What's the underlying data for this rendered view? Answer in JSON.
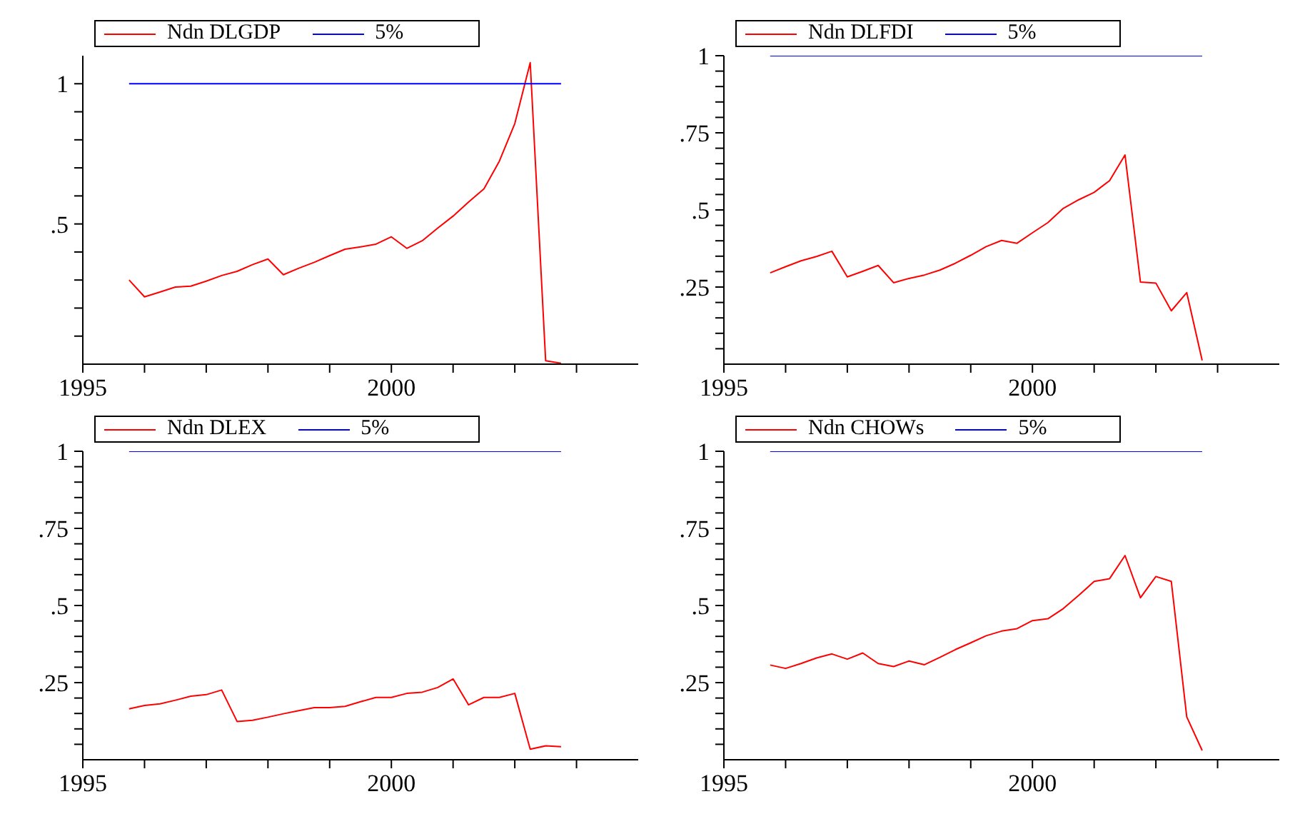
{
  "chart_data": [
    {
      "type": "line",
      "x": [
        1995.75,
        1996,
        1996.25,
        1996.5,
        1996.75,
        1997,
        1997.25,
        1997.5,
        1997.75,
        1998,
        1998.25,
        1998.5,
        1998.75,
        1999,
        1999.25,
        1999.5,
        1999.75,
        2000,
        2000.25,
        2000.5,
        2000.75,
        2001,
        2001.25,
        2001.5,
        2001.75,
        2002,
        2002.25,
        2002.5,
        2002.75
      ],
      "series": [
        {
          "name": "Ndn DLGDP",
          "color": "#ff0000",
          "values": [
            0.3,
            0.24,
            0.257,
            0.275,
            0.278,
            0.296,
            0.316,
            0.331,
            0.355,
            0.375,
            0.319,
            0.342,
            0.363,
            0.387,
            0.41,
            0.418,
            0.428,
            0.454,
            0.413,
            0.44,
            0.485,
            0.528,
            0.578,
            0.625,
            0.724,
            0.858,
            1.075,
            0.012,
            0.003
          ]
        },
        {
          "name": "5%",
          "color": "#0000ff",
          "values": [
            1,
            1,
            1,
            1,
            1,
            1,
            1,
            1,
            1,
            1,
            1,
            1,
            1,
            1,
            1,
            1,
            1,
            1,
            1,
            1,
            1,
            1,
            1,
            1,
            1,
            1,
            1,
            1,
            1
          ]
        }
      ],
      "xlim": [
        1995,
        2004
      ],
      "xticks": [
        {
          "value": 1995,
          "label": "1995"
        },
        {
          "value": 1996,
          "label": null
        },
        {
          "value": 1997,
          "label": null
        },
        {
          "value": 1998,
          "label": null
        },
        {
          "value": 1999,
          "label": null
        },
        {
          "value": 2000,
          "label": "2000"
        },
        {
          "value": 2001,
          "label": null
        },
        {
          "value": 2002,
          "label": null
        },
        {
          "value": 2003,
          "label": null
        }
      ],
      "ylim": [
        0,
        1.1
      ],
      "yticks": [
        {
          "value": 0.1,
          "label": null
        },
        {
          "value": 0.2,
          "label": null
        },
        {
          "value": 0.3,
          "label": null
        },
        {
          "value": 0.4,
          "label": null
        },
        {
          "value": 0.5,
          "label": ".5"
        },
        {
          "value": 0.6,
          "label": null
        },
        {
          "value": 0.7,
          "label": null
        },
        {
          "value": 0.8,
          "label": null
        },
        {
          "value": 0.9,
          "label": null
        },
        {
          "value": 1,
          "label": "1"
        }
      ],
      "legend": "top left",
      "grid": false
    },
    {
      "type": "line",
      "x": [
        1995.75,
        1996,
        1996.25,
        1996.5,
        1996.75,
        1997,
        1997.25,
        1997.5,
        1997.75,
        1998,
        1998.25,
        1998.5,
        1998.75,
        1999,
        1999.25,
        1999.5,
        1999.75,
        2000,
        2000.25,
        2000.5,
        2000.75,
        2001,
        2001.25,
        2001.5,
        2001.75,
        2002,
        2002.25,
        2002.5,
        2002.75
      ],
      "series": [
        {
          "name": "Ndn DLFDI",
          "color": "#ff0000",
          "values": [
            0.296,
            0.316,
            0.335,
            0.349,
            0.366,
            0.283,
            0.301,
            0.32,
            0.264,
            0.278,
            0.289,
            0.305,
            0.327,
            0.353,
            0.381,
            0.401,
            0.392,
            0.426,
            0.459,
            0.505,
            0.533,
            0.557,
            0.595,
            0.678,
            0.266,
            0.263,
            0.173,
            0.232,
            0.012
          ]
        },
        {
          "name": "5%",
          "color": "#0000ff",
          "values": [
            1,
            1,
            1,
            1,
            1,
            1,
            1,
            1,
            1,
            1,
            1,
            1,
            1,
            1,
            1,
            1,
            1,
            1,
            1,
            1,
            1,
            1,
            1,
            1,
            1,
            1,
            1,
            1,
            1
          ]
        }
      ],
      "xlim": [
        1995,
        2004
      ],
      "xticks": [
        {
          "value": 1995,
          "label": "1995"
        },
        {
          "value": 1996,
          "label": null
        },
        {
          "value": 1997,
          "label": null
        },
        {
          "value": 1998,
          "label": null
        },
        {
          "value": 1999,
          "label": null
        },
        {
          "value": 2000,
          "label": "2000"
        },
        {
          "value": 2001,
          "label": null
        },
        {
          "value": 2002,
          "label": null
        },
        {
          "value": 2003,
          "label": null
        }
      ],
      "ylim": [
        0,
        1
      ],
      "yticks": [
        {
          "value": 0.05,
          "label": null
        },
        {
          "value": 0.1,
          "label": null
        },
        {
          "value": 0.15,
          "label": null
        },
        {
          "value": 0.2,
          "label": null
        },
        {
          "value": 0.25,
          "label": ".25"
        },
        {
          "value": 0.3,
          "label": null
        },
        {
          "value": 0.35,
          "label": null
        },
        {
          "value": 0.4,
          "label": null
        },
        {
          "value": 0.45,
          "label": null
        },
        {
          "value": 0.5,
          "label": ".5"
        },
        {
          "value": 0.55,
          "label": null
        },
        {
          "value": 0.6,
          "label": null
        },
        {
          "value": 0.65,
          "label": null
        },
        {
          "value": 0.7,
          "label": null
        },
        {
          "value": 0.75,
          "label": ".75"
        },
        {
          "value": 0.8,
          "label": null
        },
        {
          "value": 0.85,
          "label": null
        },
        {
          "value": 0.9,
          "label": null
        },
        {
          "value": 0.95,
          "label": null
        },
        {
          "value": 1,
          "label": "1"
        }
      ],
      "legend": "top left",
      "grid": false
    },
    {
      "type": "line",
      "x": [
        1995.75,
        1996,
        1996.25,
        1996.5,
        1996.75,
        1997,
        1997.25,
        1997.5,
        1997.75,
        1998,
        1998.25,
        1998.5,
        1998.75,
        1999,
        1999.25,
        1999.5,
        1999.75,
        2000,
        2000.25,
        2000.5,
        2000.75,
        2001,
        2001.25,
        2001.5,
        2001.75,
        2002,
        2002.25,
        2002.5,
        2002.75
      ],
      "series": [
        {
          "name": "Ndn DLEX",
          "color": "#ff0000",
          "values": [
            0.165,
            0.176,
            0.181,
            0.193,
            0.206,
            0.211,
            0.226,
            0.124,
            0.128,
            0.138,
            0.149,
            0.159,
            0.169,
            0.169,
            0.173,
            0.188,
            0.202,
            0.202,
            0.215,
            0.219,
            0.234,
            0.262,
            0.178,
            0.202,
            0.202,
            0.215,
            0.034,
            0.045,
            0.042
          ]
        },
        {
          "name": "5%",
          "color": "#0000ff",
          "values": [
            1,
            1,
            1,
            1,
            1,
            1,
            1,
            1,
            1,
            1,
            1,
            1,
            1,
            1,
            1,
            1,
            1,
            1,
            1,
            1,
            1,
            1,
            1,
            1,
            1,
            1,
            1,
            1,
            1
          ]
        }
      ],
      "xlim": [
        1995,
        2004
      ],
      "xticks": [
        {
          "value": 1995,
          "label": "1995"
        },
        {
          "value": 1996,
          "label": null
        },
        {
          "value": 1997,
          "label": null
        },
        {
          "value": 1998,
          "label": null
        },
        {
          "value": 1999,
          "label": null
        },
        {
          "value": 2000,
          "label": "2000"
        },
        {
          "value": 2001,
          "label": null
        },
        {
          "value": 2002,
          "label": null
        },
        {
          "value": 2003,
          "label": null
        }
      ],
      "ylim": [
        0,
        1
      ],
      "yticks": [
        {
          "value": 0.05,
          "label": null
        },
        {
          "value": 0.1,
          "label": null
        },
        {
          "value": 0.15,
          "label": null
        },
        {
          "value": 0.2,
          "label": null
        },
        {
          "value": 0.25,
          "label": ".25"
        },
        {
          "value": 0.3,
          "label": null
        },
        {
          "value": 0.35,
          "label": null
        },
        {
          "value": 0.4,
          "label": null
        },
        {
          "value": 0.45,
          "label": null
        },
        {
          "value": 0.5,
          "label": ".5"
        },
        {
          "value": 0.55,
          "label": null
        },
        {
          "value": 0.6,
          "label": null
        },
        {
          "value": 0.65,
          "label": null
        },
        {
          "value": 0.7,
          "label": null
        },
        {
          "value": 0.75,
          "label": ".75"
        },
        {
          "value": 0.8,
          "label": null
        },
        {
          "value": 0.85,
          "label": null
        },
        {
          "value": 0.9,
          "label": null
        },
        {
          "value": 0.95,
          "label": null
        },
        {
          "value": 1,
          "label": "1"
        }
      ],
      "legend": "top left",
      "grid": false
    },
    {
      "type": "line",
      "x": [
        1995.75,
        1996,
        1996.25,
        1996.5,
        1996.75,
        1997,
        1997.25,
        1997.5,
        1997.75,
        1998,
        1998.25,
        1998.5,
        1998.75,
        1999,
        1999.25,
        1999.5,
        1999.75,
        2000,
        2000.25,
        2000.5,
        2000.75,
        2001,
        2001.25,
        2001.5,
        2001.75,
        2002,
        2002.25,
        2002.5,
        2002.75
      ],
      "series": [
        {
          "name": "Ndn CHOWs",
          "color": "#ff0000",
          "values": [
            0.307,
            0.296,
            0.312,
            0.33,
            0.343,
            0.326,
            0.346,
            0.312,
            0.302,
            0.32,
            0.308,
            0.332,
            0.357,
            0.379,
            0.402,
            0.417,
            0.425,
            0.451,
            0.457,
            0.49,
            0.533,
            0.578,
            0.587,
            0.662,
            0.525,
            0.594,
            0.578,
            0.139,
            0.03
          ]
        },
        {
          "name": "5%",
          "color": "#0000ff",
          "values": [
            1,
            1,
            1,
            1,
            1,
            1,
            1,
            1,
            1,
            1,
            1,
            1,
            1,
            1,
            1,
            1,
            1,
            1,
            1,
            1,
            1,
            1,
            1,
            1,
            1,
            1,
            1,
            1,
            1
          ]
        }
      ],
      "xlim": [
        1995,
        2004
      ],
      "xticks": [
        {
          "value": 1995,
          "label": "1995"
        },
        {
          "value": 1996,
          "label": null
        },
        {
          "value": 1997,
          "label": null
        },
        {
          "value": 1998,
          "label": null
        },
        {
          "value": 1999,
          "label": null
        },
        {
          "value": 2000,
          "label": "2000"
        },
        {
          "value": 2001,
          "label": null
        },
        {
          "value": 2002,
          "label": null
        },
        {
          "value": 2003,
          "label": null
        }
      ],
      "ylim": [
        0,
        1
      ],
      "yticks": [
        {
          "value": 0.05,
          "label": null
        },
        {
          "value": 0.1,
          "label": null
        },
        {
          "value": 0.15,
          "label": null
        },
        {
          "value": 0.2,
          "label": null
        },
        {
          "value": 0.25,
          "label": ".25"
        },
        {
          "value": 0.3,
          "label": null
        },
        {
          "value": 0.35,
          "label": null
        },
        {
          "value": 0.4,
          "label": null
        },
        {
          "value": 0.45,
          "label": null
        },
        {
          "value": 0.5,
          "label": ".5"
        },
        {
          "value": 0.55,
          "label": null
        },
        {
          "value": 0.6,
          "label": null
        },
        {
          "value": 0.65,
          "label": null
        },
        {
          "value": 0.7,
          "label": null
        },
        {
          "value": 0.75,
          "label": ".75"
        },
        {
          "value": 0.8,
          "label": null
        },
        {
          "value": 0.85,
          "label": null
        },
        {
          "value": 0.9,
          "label": null
        },
        {
          "value": 0.95,
          "label": null
        },
        {
          "value": 1,
          "label": "1"
        }
      ],
      "legend": "top left",
      "grid": false
    }
  ]
}
